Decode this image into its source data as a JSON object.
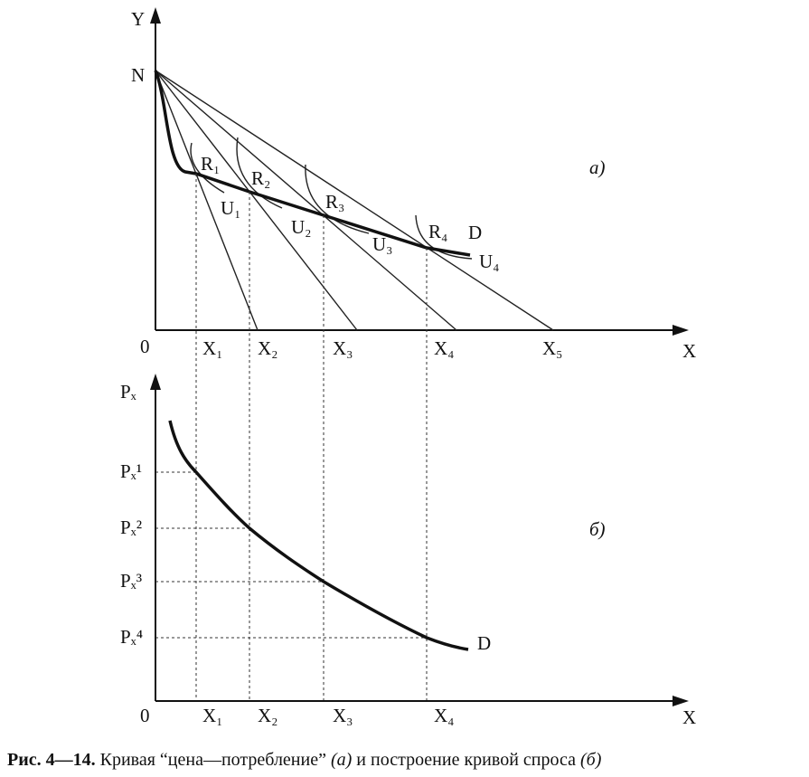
{
  "diagram": {
    "top": {
      "y_axis": "Y",
      "x_axis": "X",
      "origin": "0",
      "intercept": "N",
      "panel": "а)",
      "curve": "D",
      "points": [
        "R₁",
        "R₂",
        "R₃",
        "R₄"
      ],
      "indifference": [
        "U₁",
        "U₂",
        "U₃",
        "U₄"
      ],
      "x_labels": [
        "X₁",
        "X₂",
        "X₃",
        "X₄",
        "X₅"
      ]
    },
    "bottom": {
      "y_axis": "Pₓ",
      "x_axis": "X",
      "origin": "0",
      "panel": "б)",
      "curve": "D",
      "prices": [
        "Pₓ¹",
        "Pₓ²",
        "Pₓ³",
        "Pₓ⁴"
      ],
      "x_labels": [
        "X₁",
        "X₂",
        "X₃",
        "X₄"
      ]
    },
    "caption": [
      "Рис. 4—14.",
      "Кривая “цена—потребление”",
      "(а)",
      "и построение кривой спроса",
      "(б)"
    ]
  }
}
